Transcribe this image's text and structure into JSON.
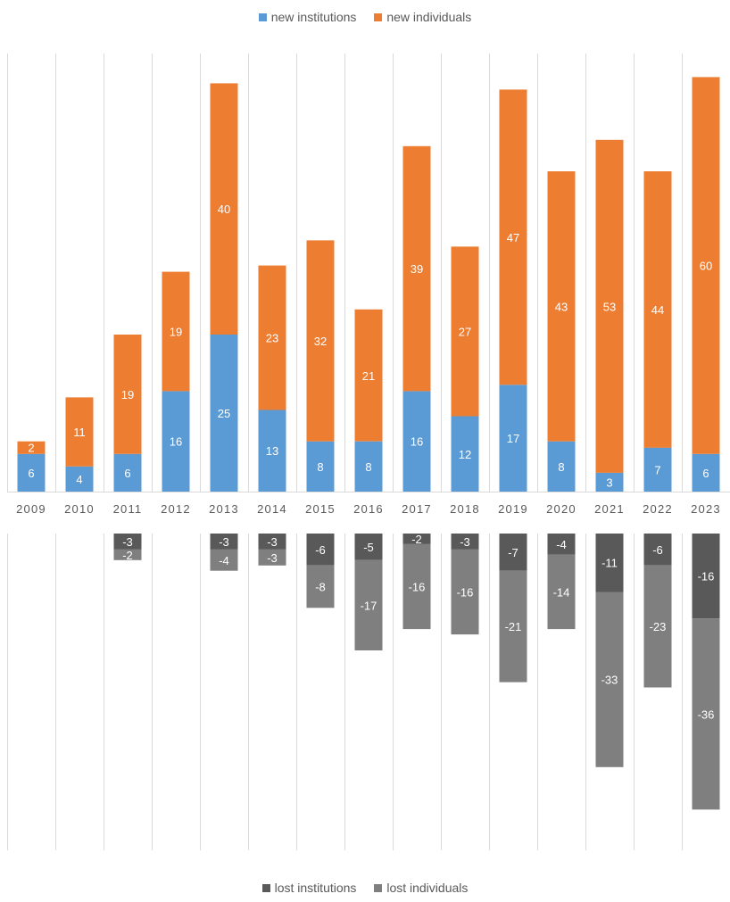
{
  "chart_data": [
    {
      "type": "bar",
      "stacked": true,
      "categories": [
        "2009",
        "2010",
        "2011",
        "2012",
        "2013",
        "2014",
        "2015",
        "2016",
        "2017",
        "2018",
        "2019",
        "2020",
        "2021",
        "2022",
        "2023"
      ],
      "series": [
        {
          "name": "new institutions",
          "color": "#5B9BD5",
          "values": [
            6,
            4,
            6,
            16,
            25,
            13,
            8,
            8,
            16,
            12,
            17,
            8,
            3,
            7,
            6
          ]
        },
        {
          "name": "new individuals",
          "color": "#ED7D31",
          "values": [
            2,
            11,
            19,
            19,
            40,
            23,
            32,
            21,
            39,
            27,
            47,
            43,
            53,
            44,
            60
          ]
        }
      ],
      "legend_position": "top",
      "grid": false,
      "category_separators": true,
      "data_labels": true
    },
    {
      "type": "bar",
      "stacked": true,
      "categories": [
        "2009",
        "2010",
        "2011",
        "2012",
        "2013",
        "2014",
        "2015",
        "2016",
        "2017",
        "2018",
        "2019",
        "2020",
        "2021",
        "2022",
        "2023"
      ],
      "series": [
        {
          "name": "lost institutions",
          "color": "#595959",
          "values": [
            null,
            null,
            -3,
            null,
            -3,
            -3,
            -6,
            -5,
            -2,
            -3,
            -7,
            -4,
            -11,
            -6,
            -16
          ]
        },
        {
          "name": "lost individuals",
          "color": "#7F7F7F",
          "values": [
            null,
            null,
            -2,
            null,
            -4,
            -3,
            -8,
            -17,
            -16,
            -16,
            -21,
            -14,
            -33,
            -23,
            -36
          ]
        }
      ],
      "legend_position": "bottom",
      "grid": false,
      "category_separators": true,
      "data_labels": true
    }
  ]
}
